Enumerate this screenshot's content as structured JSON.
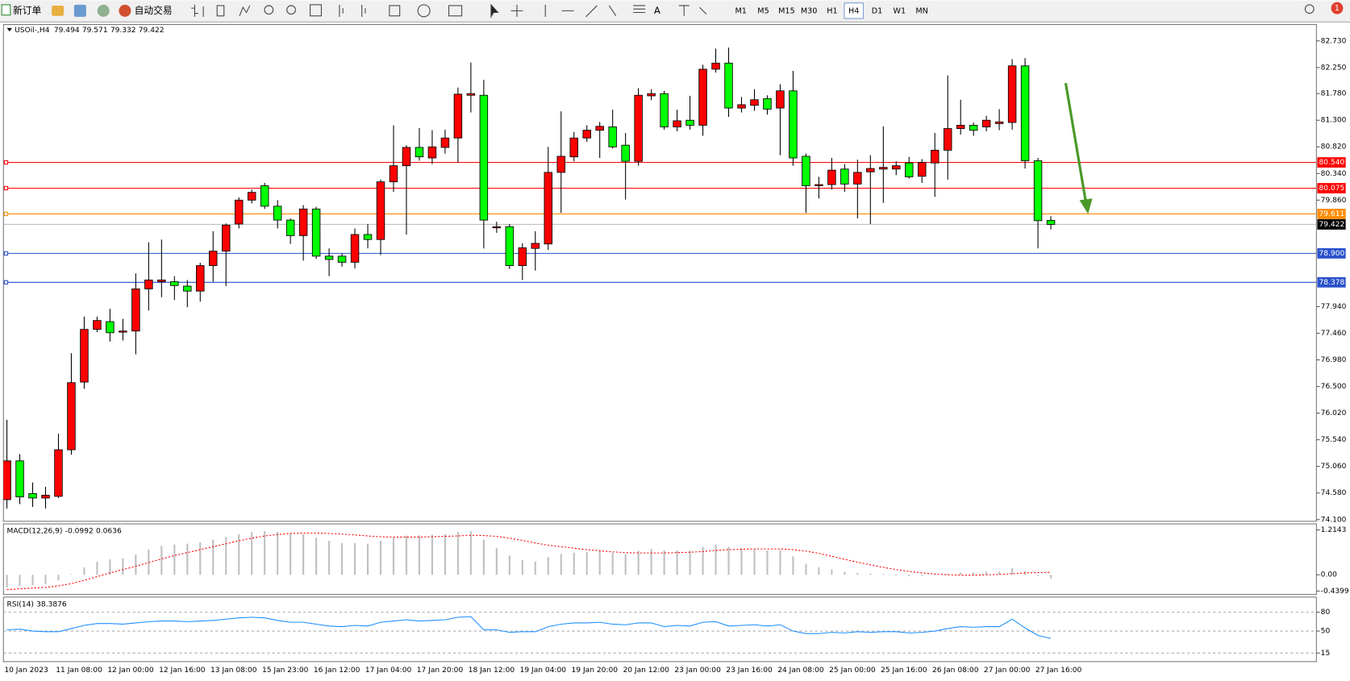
{
  "toolbar": {
    "new_order": "新订单",
    "auto_trading": "自动交易",
    "timeframes": [
      "M1",
      "M5",
      "M15",
      "M30",
      "H1",
      "H4",
      "D1",
      "W1",
      "MN"
    ],
    "active_timeframe": "H4",
    "notifications": 1
  },
  "chart_data": [
    {
      "type": "candlestick",
      "title": "USOil-,H4",
      "categories": [
        "10 Jan 2023",
        null,
        null,
        null,
        "11 Jan 08:00",
        null,
        null,
        null,
        "12 Jan 00:00",
        null,
        null,
        null,
        "12 Jan 16:00",
        null,
        null,
        null,
        "13 Jan 08:00",
        null,
        null,
        null,
        "15 Jan 23:00",
        null,
        null,
        null,
        "16 Jan 12:00",
        null,
        null,
        null,
        "17 Jan 04:00",
        null,
        null,
        null,
        "17 Jan 20:00",
        null,
        null,
        null,
        "18 Jan 12:00",
        null,
        null,
        null,
        "19 Jan 04:00",
        null,
        null,
        null,
        "19 Jan 20:00",
        null,
        null,
        null,
        "20 Jan 12:00",
        null,
        null,
        null,
        "23 Jan 00:00",
        null,
        null,
        null,
        "23 Jan 16:00",
        null,
        null,
        null,
        "24 Jan 08:00",
        null,
        null,
        null,
        "25 Jan 00:00",
        null,
        null,
        null,
        "25 Jan 16:00",
        null,
        null,
        null,
        "26 Jan 08:00",
        null,
        null,
        null,
        "27 Jan 00:00",
        null,
        null,
        null,
        "27 Jan 16:00",
        null
      ],
      "open": [
        74.46,
        75.16,
        74.57,
        74.49,
        74.52,
        75.36,
        76.58,
        77.53,
        77.67,
        77.48,
        77.5,
        78.26,
        78.39,
        78.39,
        78.31,
        78.22,
        78.68,
        78.94,
        79.43,
        79.86,
        80.12,
        79.75,
        79.5,
        79.22,
        79.7,
        78.85,
        78.85,
        78.74,
        79.24,
        79.15,
        80.19,
        80.48,
        80.81,
        80.62,
        80.81,
        80.98,
        81.75,
        81.75,
        79.36,
        79.38,
        78.68,
        78.99,
        79.07,
        80.36,
        80.64,
        80.98,
        81.12,
        81.18,
        80.85,
        80.56,
        81.74,
        81.78,
        81.18,
        81.3,
        81.21,
        82.22,
        82.33,
        81.52,
        81.57,
        81.69,
        81.52,
        81.83,
        80.65,
        80.12,
        80.14,
        80.42,
        80.15,
        80.37,
        80.42,
        80.42,
        80.53,
        80.29,
        80.53,
        80.76,
        81.15,
        81.21,
        81.18,
        81.24,
        81.26,
        82.28,
        80.57,
        79.494
      ],
      "high": [
        75.9,
        75.28,
        74.77,
        74.69,
        75.65,
        77.1,
        77.76,
        77.76,
        77.9,
        77.72,
        78.54,
        79.1,
        79.15,
        78.49,
        78.42,
        78.73,
        79.3,
        79.44,
        79.91,
        80.05,
        80.17,
        79.86,
        79.53,
        79.77,
        79.74,
        78.99,
        78.9,
        79.35,
        79.43,
        80.23,
        81.21,
        80.85,
        81.16,
        81.12,
        81.13,
        81.89,
        82.34,
        82.03,
        79.47,
        79.43,
        79.08,
        79.3,
        80.82,
        81.46,
        81.09,
        81.21,
        81.27,
        81.49,
        81.07,
        81.88,
        81.86,
        81.83,
        81.49,
        81.74,
        82.3,
        82.59,
        82.61,
        81.72,
        81.86,
        81.75,
        81.95,
        82.19,
        80.7,
        80.28,
        80.62,
        80.51,
        80.59,
        80.67,
        81.19,
        80.56,
        80.64,
        80.6,
        81.07,
        82.11,
        81.67,
        81.26,
        81.38,
        81.5,
        82.4,
        82.42,
        80.62,
        79.571
      ],
      "low": [
        74.3,
        74.38,
        74.33,
        74.3,
        74.49,
        75.27,
        76.46,
        77.48,
        77.31,
        77.33,
        77.08,
        77.87,
        78.11,
        78.06,
        77.93,
        78.03,
        78.39,
        78.31,
        79.35,
        79.8,
        79.7,
        79.35,
        79.07,
        78.77,
        78.8,
        78.49,
        78.66,
        78.63,
        78.99,
        78.87,
        80.01,
        79.24,
        80.57,
        80.51,
        80.7,
        80.54,
        81.44,
        78.99,
        79.27,
        78.62,
        78.42,
        78.59,
        78.96,
        79.63,
        80.56,
        80.91,
        80.62,
        80.79,
        79.87,
        80.48,
        81.66,
        81.13,
        81.1,
        81.13,
        81.02,
        82.16,
        81.36,
        81.44,
        81.47,
        81.4,
        80.67,
        80.48,
        79.63,
        79.89,
        80.05,
        80.01,
        79.53,
        79.43,
        79.81,
        80.31,
        80.25,
        80.17,
        79.92,
        80.23,
        81.04,
        81.02,
        81.1,
        81.12,
        81.13,
        80.43,
        78.99,
        79.332
      ],
      "close": [
        75.16,
        74.51,
        74.49,
        74.54,
        75.36,
        76.57,
        77.53,
        77.69,
        77.47,
        77.5,
        78.26,
        78.42,
        78.42,
        78.32,
        78.22,
        78.68,
        78.94,
        79.41,
        79.86,
        80.0,
        79.75,
        79.5,
        79.22,
        79.7,
        78.85,
        78.79,
        78.74,
        79.24,
        79.15,
        80.19,
        80.48,
        80.81,
        80.64,
        80.82,
        80.98,
        81.77,
        81.78,
        79.5,
        79.38,
        78.68,
        79.0,
        79.08,
        80.36,
        80.65,
        80.98,
        81.12,
        81.19,
        80.82,
        80.56,
        81.75,
        81.78,
        81.18,
        81.29,
        81.21,
        82.22,
        82.33,
        81.52,
        81.58,
        81.67,
        81.5,
        81.83,
        80.62,
        80.12,
        80.14,
        80.4,
        80.15,
        80.36,
        80.43,
        80.45,
        80.48,
        80.28,
        80.54,
        80.76,
        81.15,
        81.21,
        81.12,
        81.3,
        81.27,
        82.28,
        80.57,
        79.49,
        79.422
      ],
      "up_color": "#ff0000",
      "down_color": "#00ff00",
      "ylim": [
        74.07,
        83.01
      ],
      "yticks": [
        {
          "value": 82.73,
          "label": "82.730"
        },
        {
          "value": 82.25,
          "label": "82.250"
        },
        {
          "value": 81.78,
          "label": "81.780"
        },
        {
          "value": 81.3,
          "label": "81.300"
        },
        {
          "value": 80.82,
          "label": "80.820"
        },
        {
          "value": 80.34,
          "label": "80.340"
        },
        {
          "value": 79.86,
          "label": "79.860"
        },
        {
          "value": 77.94,
          "label": "77.940"
        },
        {
          "value": 77.46,
          "label": "77.460"
        },
        {
          "value": 76.98,
          "label": "76.980"
        },
        {
          "value": 76.5,
          "label": "76.500"
        },
        {
          "value": 76.02,
          "label": "76.020"
        },
        {
          "value": 75.54,
          "label": "75.540"
        },
        {
          "value": 75.06,
          "label": "75.060"
        },
        {
          "value": 74.58,
          "label": "74.580"
        },
        {
          "value": 74.1,
          "label": "74.100"
        }
      ],
      "levels": [
        {
          "value": 80.54,
          "label": "80.540",
          "color": "#ff0000"
        },
        {
          "value": 80.075,
          "label": "80.075",
          "color": "#ff0000"
        },
        {
          "value": 79.611,
          "label": "79.611",
          "color": "#ff8c00"
        },
        {
          "value": 78.9,
          "label": "78.900",
          "color": "#2a52cc"
        },
        {
          "value": 78.378,
          "label": "78.378",
          "color": "#2a52cc"
        }
      ],
      "bid": {
        "value": 79.422,
        "label": "79.422",
        "color": "#c0c0c0"
      }
    },
    {
      "type": "macd",
      "series": [
        {
          "name": "MACD(12,26,9)",
          "color": "#c0c0c0",
          "values": [
            -0.35,
            -0.3,
            -0.28,
            -0.25,
            -0.15,
            0.02,
            0.2,
            0.35,
            0.42,
            0.45,
            0.55,
            0.68,
            0.78,
            0.82,
            0.84,
            0.88,
            0.95,
            1.02,
            1.1,
            1.16,
            1.18,
            1.16,
            1.12,
            1.1,
            1.0,
            0.92,
            0.86,
            0.86,
            0.84,
            0.92,
            1.0,
            1.06,
            1.07,
            1.08,
            1.1,
            1.16,
            1.18,
            0.95,
            0.72,
            0.52,
            0.4,
            0.36,
            0.48,
            0.56,
            0.6,
            0.62,
            0.64,
            0.6,
            0.56,
            0.65,
            0.7,
            0.66,
            0.66,
            0.65,
            0.75,
            0.82,
            0.76,
            0.72,
            0.7,
            0.66,
            0.66,
            0.5,
            0.3,
            0.2,
            0.14,
            0.08,
            0.05,
            0.03,
            0.02,
            -0.02,
            -0.04,
            -0.03,
            -0.02,
            0.03,
            0.06,
            0.06,
            0.08,
            0.08,
            0.18,
            0.1,
            -0.03,
            -0.0992
          ]
        },
        {
          "color": "#ff0000",
          "style": "dotted",
          "values": [
            -0.4,
            -0.38,
            -0.36,
            -0.34,
            -0.3,
            -0.24,
            -0.15,
            -0.05,
            0.05,
            0.14,
            0.23,
            0.33,
            0.43,
            0.52,
            0.6,
            0.68,
            0.76,
            0.84,
            0.92,
            0.99,
            1.05,
            1.09,
            1.12,
            1.13,
            1.13,
            1.12,
            1.1,
            1.08,
            1.05,
            1.03,
            1.02,
            1.02,
            1.02,
            1.03,
            1.04,
            1.05,
            1.07,
            1.06,
            1.04,
            0.99,
            0.93,
            0.86,
            0.8,
            0.76,
            0.72,
            0.68,
            0.65,
            0.62,
            0.6,
            0.59,
            0.59,
            0.59,
            0.6,
            0.61,
            0.63,
            0.66,
            0.68,
            0.69,
            0.7,
            0.7,
            0.7,
            0.68,
            0.64,
            0.58,
            0.5,
            0.42,
            0.34,
            0.27,
            0.2,
            0.14,
            0.09,
            0.05,
            0.02,
            0.0,
            -0.01,
            -0.01,
            0.0,
            0.01,
            0.03,
            0.05,
            0.06,
            0.0636
          ]
        }
      ],
      "ylim": [
        -0.4399,
        1.2143
      ],
      "yticks": [
        1.2143,
        {
          "value": 0,
          "label": "0.00"
        },
        -0.4399
      ]
    },
    {
      "type": "line",
      "series": [
        {
          "name": "RSI(14)",
          "color": "#1e90ff",
          "values": [
            52,
            53,
            50,
            49,
            49,
            54,
            59,
            62,
            62,
            61,
            63,
            65,
            66,
            66,
            65,
            66,
            67,
            69,
            71,
            72,
            71,
            67,
            64,
            64,
            61,
            58,
            57,
            59,
            58,
            64,
            66,
            68,
            66,
            67,
            68,
            72,
            73,
            52,
            52,
            48,
            49,
            49,
            57,
            61,
            63,
            63,
            64,
            61,
            60,
            63,
            63,
            57,
            59,
            58,
            64,
            65,
            58,
            59,
            60,
            58,
            60,
            50,
            46,
            46,
            48,
            47,
            49,
            48,
            49,
            49,
            47,
            48,
            50,
            54,
            57,
            56,
            57,
            57,
            69,
            55,
            43,
            38.3876
          ]
        }
      ],
      "ylim": [
        0,
        100
      ],
      "yticks": [
        80,
        50,
        15
      ],
      "level_lines": true
    }
  ]
}
